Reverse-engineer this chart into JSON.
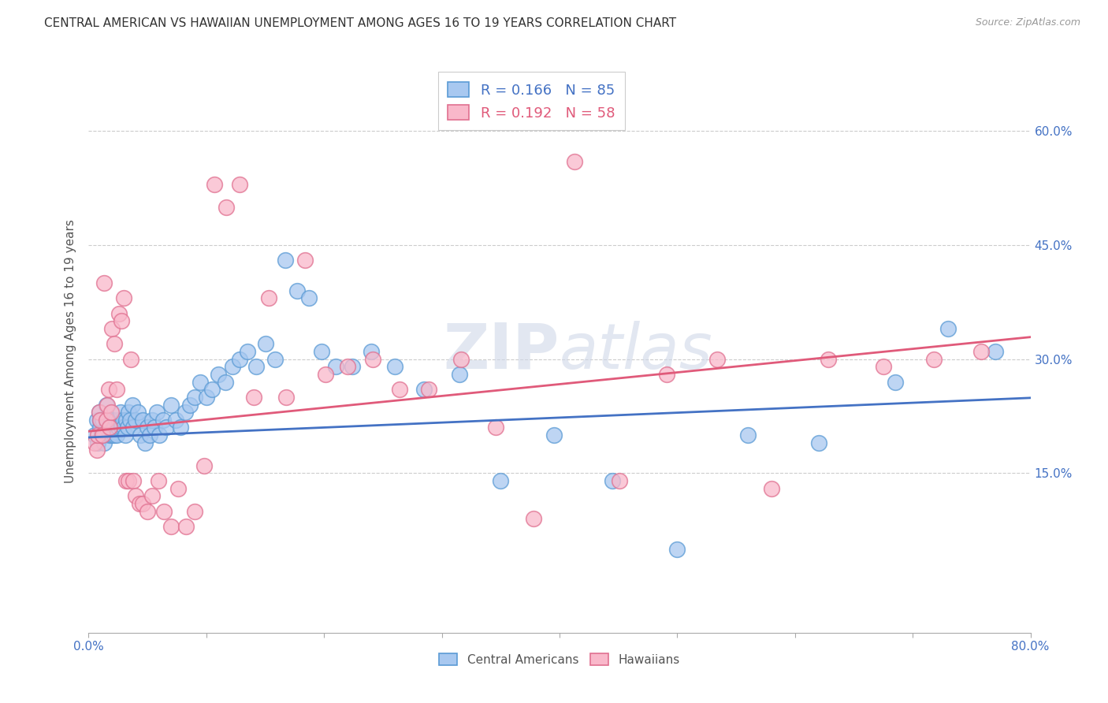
{
  "title": "CENTRAL AMERICAN VS HAWAIIAN UNEMPLOYMENT AMONG AGES 16 TO 19 YEARS CORRELATION CHART",
  "source": "Source: ZipAtlas.com",
  "ylabel": "Unemployment Among Ages 16 to 19 years",
  "xlim": [
    0.0,
    0.8
  ],
  "ylim": [
    -0.06,
    0.68
  ],
  "background_color": "#ffffff",
  "grid_color": "#cccccc",
  "blue_face_color": "#a8c8f0",
  "blue_edge_color": "#5b9bd5",
  "pink_face_color": "#f9b8ca",
  "pink_edge_color": "#e07090",
  "blue_line_color": "#4472c4",
  "pink_line_color": "#e05a7a",
  "legend_blue_label": "Central Americans",
  "legend_pink_label": "Hawaiians",
  "r_blue": 0.166,
  "n_blue": 85,
  "r_pink": 0.192,
  "n_pink": 58,
  "blue_intercept": 0.197,
  "blue_slope": 0.065,
  "pink_intercept": 0.205,
  "pink_slope": 0.155,
  "ytick_values": [
    0.15,
    0.3,
    0.45,
    0.6
  ],
  "ytick_labels": [
    "15.0%",
    "30.0%",
    "45.0%",
    "60.0%"
  ],
  "blue_x": [
    0.005,
    0.007,
    0.008,
    0.009,
    0.01,
    0.01,
    0.011,
    0.012,
    0.013,
    0.013,
    0.015,
    0.015,
    0.016,
    0.017,
    0.018,
    0.019,
    0.02,
    0.02,
    0.021,
    0.022,
    0.022,
    0.023,
    0.024,
    0.025,
    0.026,
    0.027,
    0.028,
    0.029,
    0.03,
    0.031,
    0.032,
    0.033,
    0.034,
    0.035,
    0.037,
    0.038,
    0.04,
    0.042,
    0.044,
    0.046,
    0.048,
    0.05,
    0.052,
    0.054,
    0.056,
    0.058,
    0.06,
    0.063,
    0.066,
    0.07,
    0.074,
    0.078,
    0.082,
    0.086,
    0.09,
    0.095,
    0.1,
    0.105,
    0.11,
    0.116,
    0.122,
    0.128,
    0.135,
    0.142,
    0.15,
    0.158,
    0.167,
    0.177,
    0.187,
    0.198,
    0.21,
    0.224,
    0.24,
    0.26,
    0.285,
    0.315,
    0.35,
    0.395,
    0.445,
    0.5,
    0.56,
    0.62,
    0.685,
    0.73,
    0.77
  ],
  "blue_y": [
    0.2,
    0.22,
    0.19,
    0.23,
    0.21,
    0.22,
    0.2,
    0.22,
    0.2,
    0.19,
    0.21,
    0.24,
    0.22,
    0.21,
    0.2,
    0.22,
    0.2,
    0.22,
    0.21,
    0.2,
    0.21,
    0.22,
    0.2,
    0.21,
    0.22,
    0.23,
    0.21,
    0.22,
    0.21,
    0.2,
    0.22,
    0.21,
    0.23,
    0.22,
    0.24,
    0.21,
    0.22,
    0.23,
    0.2,
    0.22,
    0.19,
    0.21,
    0.2,
    0.22,
    0.21,
    0.23,
    0.2,
    0.22,
    0.21,
    0.24,
    0.22,
    0.21,
    0.23,
    0.24,
    0.25,
    0.27,
    0.25,
    0.26,
    0.28,
    0.27,
    0.29,
    0.3,
    0.31,
    0.29,
    0.32,
    0.3,
    0.43,
    0.39,
    0.38,
    0.31,
    0.29,
    0.29,
    0.31,
    0.29,
    0.26,
    0.28,
    0.14,
    0.2,
    0.14,
    0.05,
    0.2,
    0.19,
    0.27,
    0.34,
    0.31
  ],
  "pink_x": [
    0.005,
    0.007,
    0.008,
    0.009,
    0.01,
    0.012,
    0.013,
    0.015,
    0.016,
    0.017,
    0.018,
    0.019,
    0.02,
    0.022,
    0.024,
    0.026,
    0.028,
    0.03,
    0.032,
    0.034,
    0.036,
    0.038,
    0.04,
    0.043,
    0.046,
    0.05,
    0.054,
    0.059,
    0.064,
    0.07,
    0.076,
    0.083,
    0.09,
    0.098,
    0.107,
    0.117,
    0.128,
    0.14,
    0.153,
    0.168,
    0.184,
    0.201,
    0.22,
    0.241,
    0.264,
    0.289,
    0.316,
    0.346,
    0.378,
    0.413,
    0.451,
    0.491,
    0.534,
    0.58,
    0.628,
    0.675,
    0.718,
    0.758
  ],
  "pink_y": [
    0.19,
    0.18,
    0.2,
    0.23,
    0.22,
    0.2,
    0.4,
    0.22,
    0.24,
    0.26,
    0.21,
    0.23,
    0.34,
    0.32,
    0.26,
    0.36,
    0.35,
    0.38,
    0.14,
    0.14,
    0.3,
    0.14,
    0.12,
    0.11,
    0.11,
    0.1,
    0.12,
    0.14,
    0.1,
    0.08,
    0.13,
    0.08,
    0.1,
    0.16,
    0.53,
    0.5,
    0.53,
    0.25,
    0.38,
    0.25,
    0.43,
    0.28,
    0.29,
    0.3,
    0.26,
    0.26,
    0.3,
    0.21,
    0.09,
    0.56,
    0.14,
    0.28,
    0.3,
    0.13,
    0.3,
    0.29,
    0.3,
    0.31
  ]
}
